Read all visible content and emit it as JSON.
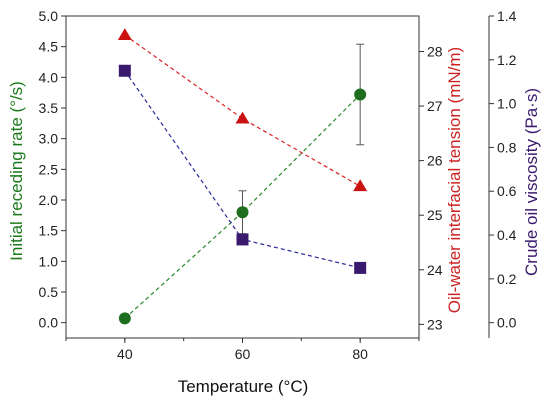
{
  "chart_data": {
    "type": "line",
    "x": [
      40,
      60,
      80
    ],
    "xlabel": "Temperature (°C)",
    "xlim": [
      30,
      90
    ],
    "xticks": [
      "40",
      "60",
      "80"
    ],
    "grid": false,
    "y_axes": [
      {
        "id": "left",
        "label": "Initial receding rate (°/s)",
        "color": "#1a7a1a",
        "lim": [
          -0.25,
          5.0
        ],
        "ticks": [
          "0.0",
          "0.5",
          "1.0",
          "1.5",
          "2.0",
          "2.5",
          "3.0",
          "3.5",
          "4.0",
          "4.5",
          "5.0"
        ]
      },
      {
        "id": "right1",
        "label": "Oil-water interfacial tension (mN/m)",
        "color": "#cc2222",
        "lim": [
          22.75,
          28.65
        ],
        "ticks": [
          "23",
          "24",
          "25",
          "26",
          "27",
          "28"
        ]
      },
      {
        "id": "right2",
        "label": "Crude oil viscosity (Pa·s)",
        "color": "#3a1a6e",
        "lim": [
          -0.07,
          1.4
        ],
        "ticks": [
          "0.0",
          "0.2",
          "0.4",
          "0.6",
          "0.8",
          "1.0",
          "1.2",
          "1.4"
        ]
      }
    ],
    "series": [
      {
        "axis": "left",
        "marker": "circle",
        "color": "#1f6e1f",
        "line_color": "#2e8b2e",
        "values": [
          0.07,
          1.8,
          3.72
        ],
        "errors": [
          0,
          0.35,
          0.82
        ]
      },
      {
        "axis": "right1",
        "marker": "triangle",
        "color": "#cc1111",
        "line_color": "#dd2222",
        "values": [
          28.3,
          26.77,
          25.53
        ]
      },
      {
        "axis": "right2",
        "marker": "square",
        "color": "#3a1a6e",
        "line_color": "#2a2a9a",
        "values": [
          1.15,
          0.38,
          0.25
        ]
      }
    ]
  }
}
